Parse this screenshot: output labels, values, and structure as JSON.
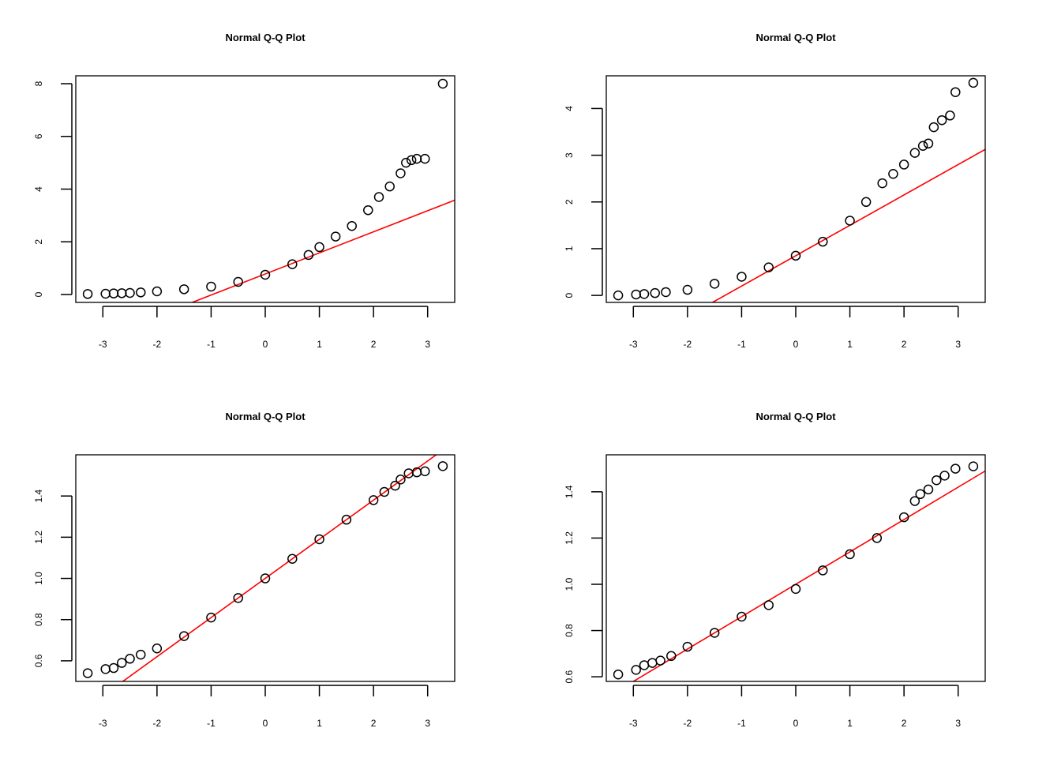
{
  "chart_data": [
    {
      "type": "scatter",
      "title": "Normal Q-Q Plot",
      "xlabel": "",
      "ylabel": "",
      "xlim": [
        -3.5,
        3.5
      ],
      "ylim": [
        -0.3,
        8.3
      ],
      "xticks": [
        -3,
        -2,
        -1,
        0,
        1,
        2,
        3
      ],
      "yticks": [
        0,
        2,
        4,
        6,
        8
      ],
      "grid": false,
      "reference_line": {
        "intercept": 0.78,
        "slope": 0.8,
        "color": "#ff0000"
      },
      "points": [
        [
          -3.28,
          0.02
        ],
        [
          -2.95,
          0.03
        ],
        [
          -2.8,
          0.04
        ],
        [
          -2.65,
          0.05
        ],
        [
          -2.5,
          0.06
        ],
        [
          -2.3,
          0.08
        ],
        [
          -2.0,
          0.12
        ],
        [
          -1.5,
          0.2
        ],
        [
          -1.0,
          0.3
        ],
        [
          -0.5,
          0.48
        ],
        [
          0.0,
          0.75
        ],
        [
          0.5,
          1.15
        ],
        [
          0.8,
          1.5
        ],
        [
          1.0,
          1.8
        ],
        [
          1.3,
          2.2
        ],
        [
          1.6,
          2.6
        ],
        [
          1.9,
          3.2
        ],
        [
          2.1,
          3.7
        ],
        [
          2.3,
          4.1
        ],
        [
          2.5,
          4.6
        ],
        [
          2.6,
          5.0
        ],
        [
          2.7,
          5.1
        ],
        [
          2.8,
          5.15
        ],
        [
          2.95,
          5.15
        ],
        [
          3.28,
          8.0
        ]
      ]
    },
    {
      "type": "scatter",
      "title": "Normal Q-Q Plot",
      "xlabel": "",
      "ylabel": "",
      "xlim": [
        -3.5,
        3.5
      ],
      "ylim": [
        -0.15,
        4.7
      ],
      "xticks": [
        -3,
        -2,
        -1,
        0,
        1,
        2,
        3
      ],
      "yticks": [
        0,
        1,
        2,
        3,
        4
      ],
      "grid": false,
      "reference_line": {
        "intercept": 0.85,
        "slope": 0.65,
        "color": "#ff0000"
      },
      "points": [
        [
          -3.28,
          0.0
        ],
        [
          -2.95,
          0.02
        ],
        [
          -2.8,
          0.03
        ],
        [
          -2.6,
          0.05
        ],
        [
          -2.4,
          0.07
        ],
        [
          -2.0,
          0.12
        ],
        [
          -1.5,
          0.25
        ],
        [
          -1.0,
          0.4
        ],
        [
          -0.5,
          0.6
        ],
        [
          0.0,
          0.85
        ],
        [
          0.5,
          1.15
        ],
        [
          1.0,
          1.6
        ],
        [
          1.3,
          2.0
        ],
        [
          1.6,
          2.4
        ],
        [
          1.8,
          2.6
        ],
        [
          2.0,
          2.8
        ],
        [
          2.2,
          3.05
        ],
        [
          2.35,
          3.2
        ],
        [
          2.45,
          3.25
        ],
        [
          2.55,
          3.6
        ],
        [
          2.7,
          3.75
        ],
        [
          2.85,
          3.85
        ],
        [
          2.95,
          4.35
        ],
        [
          3.28,
          4.55
        ]
      ]
    },
    {
      "type": "scatter",
      "title": "Normal Q-Q Plot",
      "xlabel": "",
      "ylabel": "",
      "xlim": [
        -3.5,
        3.5
      ],
      "ylim": [
        0.5,
        1.6
      ],
      "xticks": [
        -3,
        -2,
        -1,
        0,
        1,
        2,
        3
      ],
      "yticks": [
        0.6,
        0.8,
        1.0,
        1.2,
        1.4
      ],
      "grid": false,
      "reference_line": {
        "intercept": 1.0,
        "slope": 0.19,
        "color": "#ff0000"
      },
      "points": [
        [
          -3.28,
          0.54
        ],
        [
          -2.95,
          0.56
        ],
        [
          -2.8,
          0.565
        ],
        [
          -2.65,
          0.59
        ],
        [
          -2.5,
          0.61
        ],
        [
          -2.3,
          0.63
        ],
        [
          -2.0,
          0.66
        ],
        [
          -1.5,
          0.72
        ],
        [
          -1.0,
          0.81
        ],
        [
          -0.5,
          0.905
        ],
        [
          0.0,
          1.0
        ],
        [
          0.5,
          1.095
        ],
        [
          1.0,
          1.19
        ],
        [
          1.5,
          1.285
        ],
        [
          2.0,
          1.38
        ],
        [
          2.2,
          1.42
        ],
        [
          2.4,
          1.45
        ],
        [
          2.5,
          1.48
        ],
        [
          2.65,
          1.51
        ],
        [
          2.8,
          1.515
        ],
        [
          2.95,
          1.52
        ],
        [
          3.28,
          1.545
        ]
      ]
    },
    {
      "type": "scatter",
      "title": "Normal Q-Q Plot",
      "xlabel": "",
      "ylabel": "",
      "xlim": [
        -3.5,
        3.5
      ],
      "ylim": [
        0.58,
        1.56
      ],
      "xticks": [
        -3,
        -2,
        -1,
        0,
        1,
        2,
        3
      ],
      "yticks": [
        0.6,
        0.8,
        1.0,
        1.2,
        1.4
      ],
      "grid": false,
      "reference_line": {
        "intercept": 1.0,
        "slope": 0.14,
        "color": "#ff0000"
      },
      "points": [
        [
          -3.28,
          0.61
        ],
        [
          -2.95,
          0.63
        ],
        [
          -2.8,
          0.65
        ],
        [
          -2.65,
          0.66
        ],
        [
          -2.5,
          0.67
        ],
        [
          -2.3,
          0.69
        ],
        [
          -2.0,
          0.73
        ],
        [
          -1.5,
          0.79
        ],
        [
          -1.0,
          0.86
        ],
        [
          -0.5,
          0.91
        ],
        [
          0.0,
          0.98
        ],
        [
          0.5,
          1.06
        ],
        [
          1.0,
          1.13
        ],
        [
          1.5,
          1.2
        ],
        [
          2.0,
          1.29
        ],
        [
          2.2,
          1.36
        ],
        [
          2.3,
          1.39
        ],
        [
          2.45,
          1.41
        ],
        [
          2.6,
          1.45
        ],
        [
          2.75,
          1.47
        ],
        [
          2.95,
          1.5
        ],
        [
          3.28,
          1.51
        ]
      ]
    }
  ]
}
